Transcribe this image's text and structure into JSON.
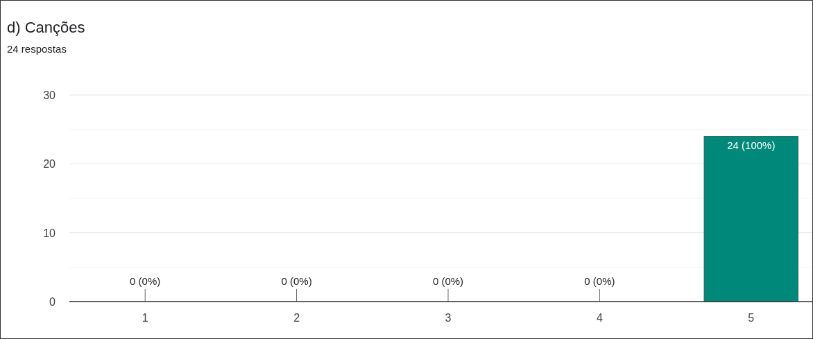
{
  "chart_data": {
    "type": "bar",
    "title": "d) Canções",
    "subtitle": "24 respostas",
    "categories": [
      "1",
      "2",
      "3",
      "4",
      "5"
    ],
    "values": [
      0,
      0,
      0,
      0,
      24
    ],
    "value_labels": [
      "0 (0%)",
      "0 (0%)",
      "0 (0%)",
      "0 (0%)",
      "24 (100%)"
    ],
    "color": "#00897b",
    "ylim": [
      0,
      30
    ],
    "yticks": [
      0,
      {
        "value": 5,
        "label": null
      },
      10,
      {
        "value": 15,
        "label": null
      },
      20,
      {
        "value": 25,
        "label": null
      },
      30
    ],
    "grid": true
  }
}
